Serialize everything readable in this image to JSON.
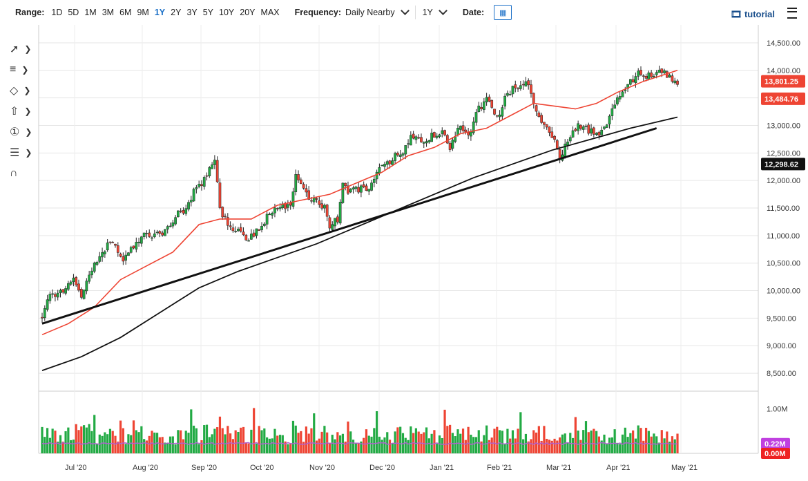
{
  "toolbar": {
    "range_label": "Range:",
    "ranges": [
      "1D",
      "5D",
      "1M",
      "3M",
      "6M",
      "9M",
      "1Y",
      "2Y",
      "3Y",
      "5Y",
      "10Y",
      "20Y",
      "MAX"
    ],
    "active_range": "1Y",
    "frequency_label": "Frequency:",
    "frequency_value": "Daily Nearby",
    "period_value": "1Y",
    "date_label": "Date:",
    "tutorial_label": "tutorial"
  },
  "tools": [
    "line-tool-icon",
    "list-tool-icon",
    "shape-tool-icon",
    "arrow-up-tool-icon",
    "number-tool-icon",
    "settings-tool-icon",
    "magnet-icon"
  ],
  "chart_data": {
    "type": "candlestick",
    "price_axis": {
      "ticks": [
        "14,500.00",
        "14,000.00",
        "13,500.00",
        "13,000.00",
        "12,500.00",
        "12,000.00",
        "11,500.00",
        "11,000.00",
        "10,500.00",
        "10,000.00",
        "9,500.00",
        "9,000.00",
        "8,500.00"
      ],
      "range": [
        8300,
        14700
      ]
    },
    "volume_axis": {
      "ticks": [
        "1.00M"
      ],
      "range": [
        0,
        1.3
      ]
    },
    "x_ticks": [
      "Jul '20",
      "Aug '20",
      "Sep '20",
      "Oct '20",
      "Nov '20",
      "Dec '20",
      "Jan '21",
      "Feb '21",
      "Mar '21",
      "Apr '21",
      "May '21"
    ],
    "close_path": [
      [
        0,
        9500
      ],
      [
        3,
        9900
      ],
      [
        8,
        10000
      ],
      [
        12,
        10200
      ],
      [
        15,
        9900
      ],
      [
        19,
        10400
      ],
      [
        23,
        10700
      ],
      [
        27,
        10900
      ],
      [
        31,
        10600
      ],
      [
        35,
        10800
      ],
      [
        39,
        11000
      ],
      [
        43,
        11000
      ],
      [
        47,
        11100
      ],
      [
        51,
        11350
      ],
      [
        55,
        11500
      ],
      [
        58,
        11800
      ],
      [
        62,
        12000
      ],
      [
        66,
        12400
      ],
      [
        68,
        11500
      ],
      [
        71,
        11200
      ],
      [
        75,
        11100
      ],
      [
        79,
        10950
      ],
      [
        83,
        11100
      ],
      [
        87,
        11400
      ],
      [
        91,
        11500
      ],
      [
        95,
        11600
      ],
      [
        97,
        12050
      ],
      [
        101,
        11750
      ],
      [
        105,
        11650
      ],
      [
        108,
        11500
      ],
      [
        110,
        11150
      ],
      [
        113,
        11300
      ],
      [
        115,
        11900
      ],
      [
        118,
        11800
      ],
      [
        121,
        11850
      ],
      [
        125,
        11800
      ],
      [
        128,
        12100
      ],
      [
        131,
        12300
      ],
      [
        134,
        12400
      ],
      [
        138,
        12550
      ],
      [
        141,
        12800
      ],
      [
        145,
        12750
      ],
      [
        149,
        12800
      ],
      [
        153,
        12900
      ],
      [
        156,
        12600
      ],
      [
        159,
        13000
      ],
      [
        163,
        12800
      ],
      [
        167,
        13300
      ],
      [
        170,
        13500
      ],
      [
        174,
        13100
      ],
      [
        177,
        13500
      ],
      [
        181,
        13700
      ],
      [
        185,
        13800
      ],
      [
        189,
        13300
      ],
      [
        193,
        12900
      ],
      [
        196,
        12800
      ],
      [
        198,
        12400
      ],
      [
        201,
        12700
      ],
      [
        205,
        13000
      ],
      [
        208,
        12950
      ],
      [
        212,
        12800
      ],
      [
        216,
        13000
      ],
      [
        220,
        13500
      ],
      [
        224,
        13750
      ],
      [
        228,
        13950
      ],
      [
        232,
        13900
      ],
      [
        236,
        14000
      ],
      [
        240,
        13850
      ],
      [
        243,
        13800
      ]
    ],
    "series": [
      {
        "name": "",
        "type": "sma_short",
        "color": "#ee4433",
        "points": [
          [
            0,
            9200
          ],
          [
            10,
            9400
          ],
          [
            20,
            9700
          ],
          [
            30,
            10200
          ],
          [
            40,
            10450
          ],
          [
            50,
            10700
          ],
          [
            60,
            11200
          ],
          [
            68,
            11300
          ],
          [
            80,
            11300
          ],
          [
            90,
            11550
          ],
          [
            100,
            11650
          ],
          [
            110,
            11750
          ],
          [
            120,
            11950
          ],
          [
            130,
            12150
          ],
          [
            140,
            12450
          ],
          [
            150,
            12600
          ],
          [
            160,
            12850
          ],
          [
            170,
            12950
          ],
          [
            180,
            13200
          ],
          [
            188,
            13400
          ],
          [
            196,
            13350
          ],
          [
            204,
            13300
          ],
          [
            212,
            13400
          ],
          [
            220,
            13600
          ],
          [
            230,
            13800
          ],
          [
            243,
            14000
          ]
        ]
      },
      {
        "name": "",
        "type": "sma_long",
        "color": "#111111",
        "points": [
          [
            0,
            8550
          ],
          [
            15,
            8800
          ],
          [
            30,
            9150
          ],
          [
            45,
            9600
          ],
          [
            60,
            10050
          ],
          [
            75,
            10350
          ],
          [
            90,
            10600
          ],
          [
            105,
            10850
          ],
          [
            120,
            11150
          ],
          [
            135,
            11450
          ],
          [
            150,
            11750
          ],
          [
            165,
            12050
          ],
          [
            180,
            12300
          ],
          [
            195,
            12550
          ],
          [
            210,
            12750
          ],
          [
            225,
            12950
          ],
          [
            243,
            13150
          ]
        ]
      },
      {
        "name": "",
        "type": "trendline",
        "color": "#111111",
        "points": [
          [
            0,
            9400
          ],
          [
            235,
            12950
          ]
        ]
      }
    ],
    "price_tags": [
      {
        "value": "13,801.25",
        "y_value": 13801.25,
        "color": "#ee4433"
      },
      {
        "value": "13,484.76",
        "y_value": 13484.76,
        "color": "#ee4433"
      },
      {
        "value": "12,298.62",
        "y_value": 12298.62,
        "color": "#111111"
      }
    ],
    "volume_tags": [
      {
        "value": "0.22M",
        "y_value": 0.22,
        "color": "#c040e0"
      },
      {
        "value": "0.00M",
        "y_value": 0.0,
        "color": "#ee2222"
      }
    ],
    "bar_count": 244,
    "colors": {
      "up": "#22aa44",
      "down": "#ee4433",
      "volume_ma": "#b060d0"
    }
  }
}
